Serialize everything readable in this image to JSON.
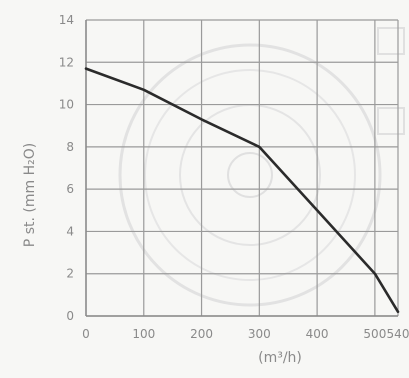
{
  "chart_data": {
    "type": "line",
    "title": "",
    "xlabel": "(m³/h)",
    "ylabel": "P st. (mm H₂O)",
    "xlim": [
      0,
      540
    ],
    "ylim": [
      0,
      14
    ],
    "x_ticks": [
      0,
      100,
      200,
      300,
      400,
      500,
      540
    ],
    "x_tick_labels": [
      "0",
      "100",
      "200",
      "300",
      "400",
      "500",
      "540"
    ],
    "y_ticks": [
      0,
      2,
      4,
      6,
      8,
      10,
      12,
      14
    ],
    "y_tick_labels": [
      "0",
      "2",
      "4",
      "6",
      "8",
      "10",
      "12",
      "14"
    ],
    "grid": true,
    "series": [
      {
        "color": "#2b2b2b",
        "x": [
          0,
          100,
          200,
          300,
          400,
          500,
          540
        ],
        "y": [
          11.7,
          10.7,
          9.3,
          8.0,
          5.0,
          2.0,
          0.2
        ]
      }
    ]
  }
}
